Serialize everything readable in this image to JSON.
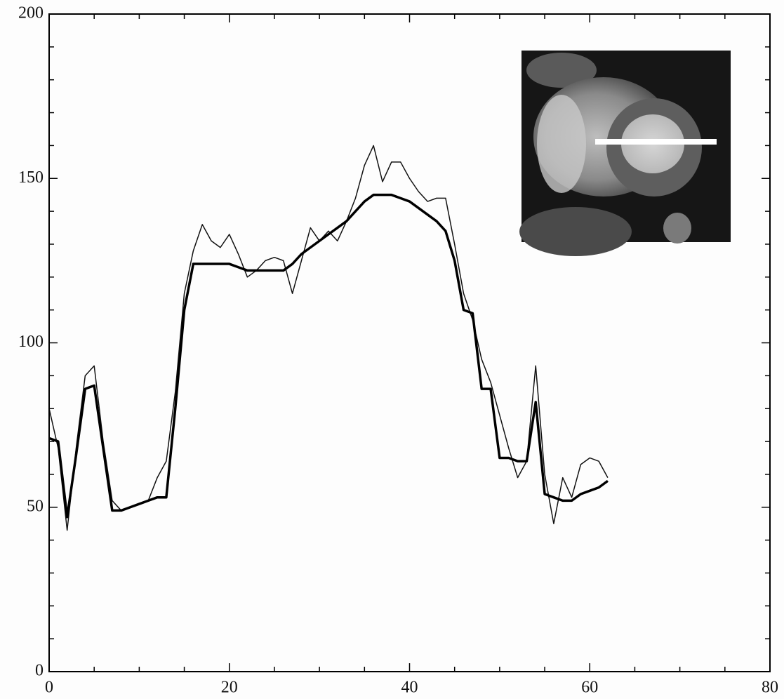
{
  "chart_data": {
    "type": "line",
    "x": [
      0,
      1,
      2,
      3,
      4,
      5,
      6,
      7,
      8,
      9,
      10,
      11,
      12,
      13,
      14,
      15,
      16,
      17,
      18,
      19,
      20,
      21,
      22,
      23,
      24,
      25,
      26,
      27,
      28,
      29,
      30,
      31,
      32,
      33,
      34,
      35,
      36,
      37,
      38,
      39,
      40,
      41,
      42,
      43,
      44,
      45,
      46,
      47,
      48,
      49,
      50,
      51,
      52,
      53,
      54,
      55,
      56,
      57,
      58,
      59,
      60,
      61,
      62
    ],
    "series": [
      {
        "color": "#111111",
        "width": 1.5,
        "values": [
          80,
          68,
          43,
          68,
          90,
          93,
          70,
          52,
          49,
          50,
          51,
          52,
          59,
          64,
          85,
          115,
          128,
          136,
          131,
          129,
          133,
          127,
          120,
          122,
          125,
          126,
          125,
          115,
          125,
          135,
          131,
          134,
          131,
          137,
          144,
          154,
          160,
          149,
          155,
          155,
          150,
          146,
          143,
          144,
          144,
          130,
          115,
          107,
          95,
          88,
          78,
          68,
          59,
          64,
          93,
          60,
          45,
          59,
          53,
          63,
          65,
          64,
          59
        ]
      },
      {
        "color": "#000000",
        "width": 3.5,
        "values": [
          71,
          70,
          47,
          66,
          86,
          87,
          68,
          49,
          49,
          50,
          51,
          52,
          53,
          53,
          80,
          110,
          124,
          124,
          124,
          124,
          124,
          123,
          122,
          122,
          122,
          122,
          122,
          124,
          127,
          129,
          131,
          133,
          135,
          137,
          140,
          143,
          145,
          145,
          145,
          144,
          143,
          141,
          139,
          137,
          134,
          125,
          110,
          109,
          86,
          86,
          65,
          65,
          64,
          64,
          82,
          54,
          53,
          52,
          52,
          54,
          55,
          56,
          58
        ]
      }
    ],
    "xlim": [
      0,
      80
    ],
    "xticks": [
      0,
      20,
      40,
      60,
      80
    ],
    "minor_xticks": [
      5,
      10,
      15,
      25,
      30,
      35,
      45,
      50,
      55,
      65,
      70,
      75
    ],
    "ylim": [
      0,
      200
    ],
    "yticks": [
      0,
      50,
      100,
      150,
      200
    ],
    "minor_yticks": [
      10,
      20,
      30,
      40,
      60,
      70,
      80,
      90,
      110,
      120,
      130,
      140,
      160,
      170,
      180,
      190
    ]
  }
}
